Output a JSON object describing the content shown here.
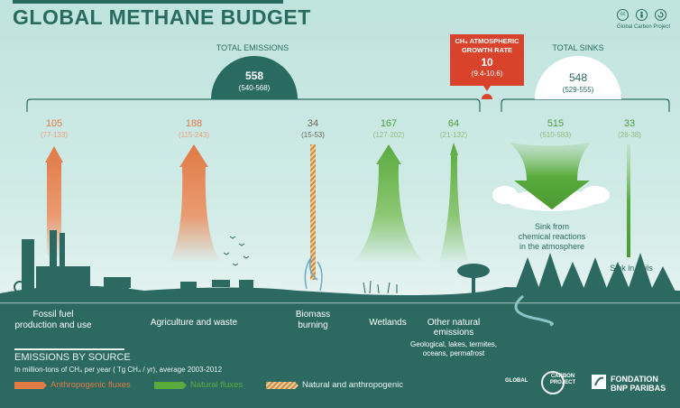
{
  "title": "GLOBAL METHANE BUDGET",
  "credit": "Global Carbon Project",
  "cc_icons": [
    "cc",
    "by",
    "sa"
  ],
  "emissions": {
    "label": "TOTAL EMISSIONS",
    "value": "558",
    "range": "(540-568)"
  },
  "growth": {
    "label_line1": "CH₄ ATMOSPHERIC",
    "label_line2": "GROWTH RATE",
    "value": "10",
    "range": "(9.4-10.6)"
  },
  "sinks_total": {
    "label": "TOTAL SINKS",
    "value": "548",
    "range": "(529-555)"
  },
  "sources": [
    {
      "value": "105",
      "range": "(77-133)",
      "label_line1": "Fossil fuel",
      "label_line2": "production and use"
    },
    {
      "value": "188",
      "range": "(115-243)",
      "label_line1": "Agriculture and waste",
      "label_line2": ""
    },
    {
      "value": "34",
      "range": "(15-53)",
      "label_line1": "Biomass",
      "label_line2": "burning"
    },
    {
      "value": "167",
      "range": "(127-202)",
      "label_line1": "Wetlands",
      "label_line2": ""
    },
    {
      "value": "64",
      "range": "(21-132)",
      "label_line1": "Other natural",
      "label_line2": "emissions",
      "detail_line1": "Geological, lakes, termites,",
      "detail_line2": "oceans, permafrost"
    }
  ],
  "sinks": [
    {
      "value": "515",
      "range": "(510-583)",
      "label_line1": "Sink from",
      "label_line2": "chemical reactions",
      "label_line3": "in the atmosphere"
    },
    {
      "value": "33",
      "range": "(28-38)",
      "label_line1": "Sink in soils"
    }
  ],
  "legend": {
    "title": "EMISSIONS BY SOURCE",
    "subtitle": "In million-tons of CH₄ per year ( Tg CH₄ / yr), average 2003-2012",
    "items": [
      {
        "label": "Anthropogenic fluxes",
        "color": "#e07a46"
      },
      {
        "label": "Natural fluxes",
        "color": "#5aab3e"
      },
      {
        "label": "Natural and anthropogenic",
        "color": "#d6a05c"
      }
    ]
  },
  "logos": {
    "gcp_line1": "GLOBAL",
    "gcp_line2": "CARBON",
    "gcp_line3": "PROJECT",
    "bnp_line1": "FONDATION",
    "bnp_line2": "BNP PARIBAS"
  },
  "colors": {
    "teal": "#2a6b61",
    "orange": "#e07a46",
    "green": "#5aab3e",
    "red": "#d9432b"
  }
}
